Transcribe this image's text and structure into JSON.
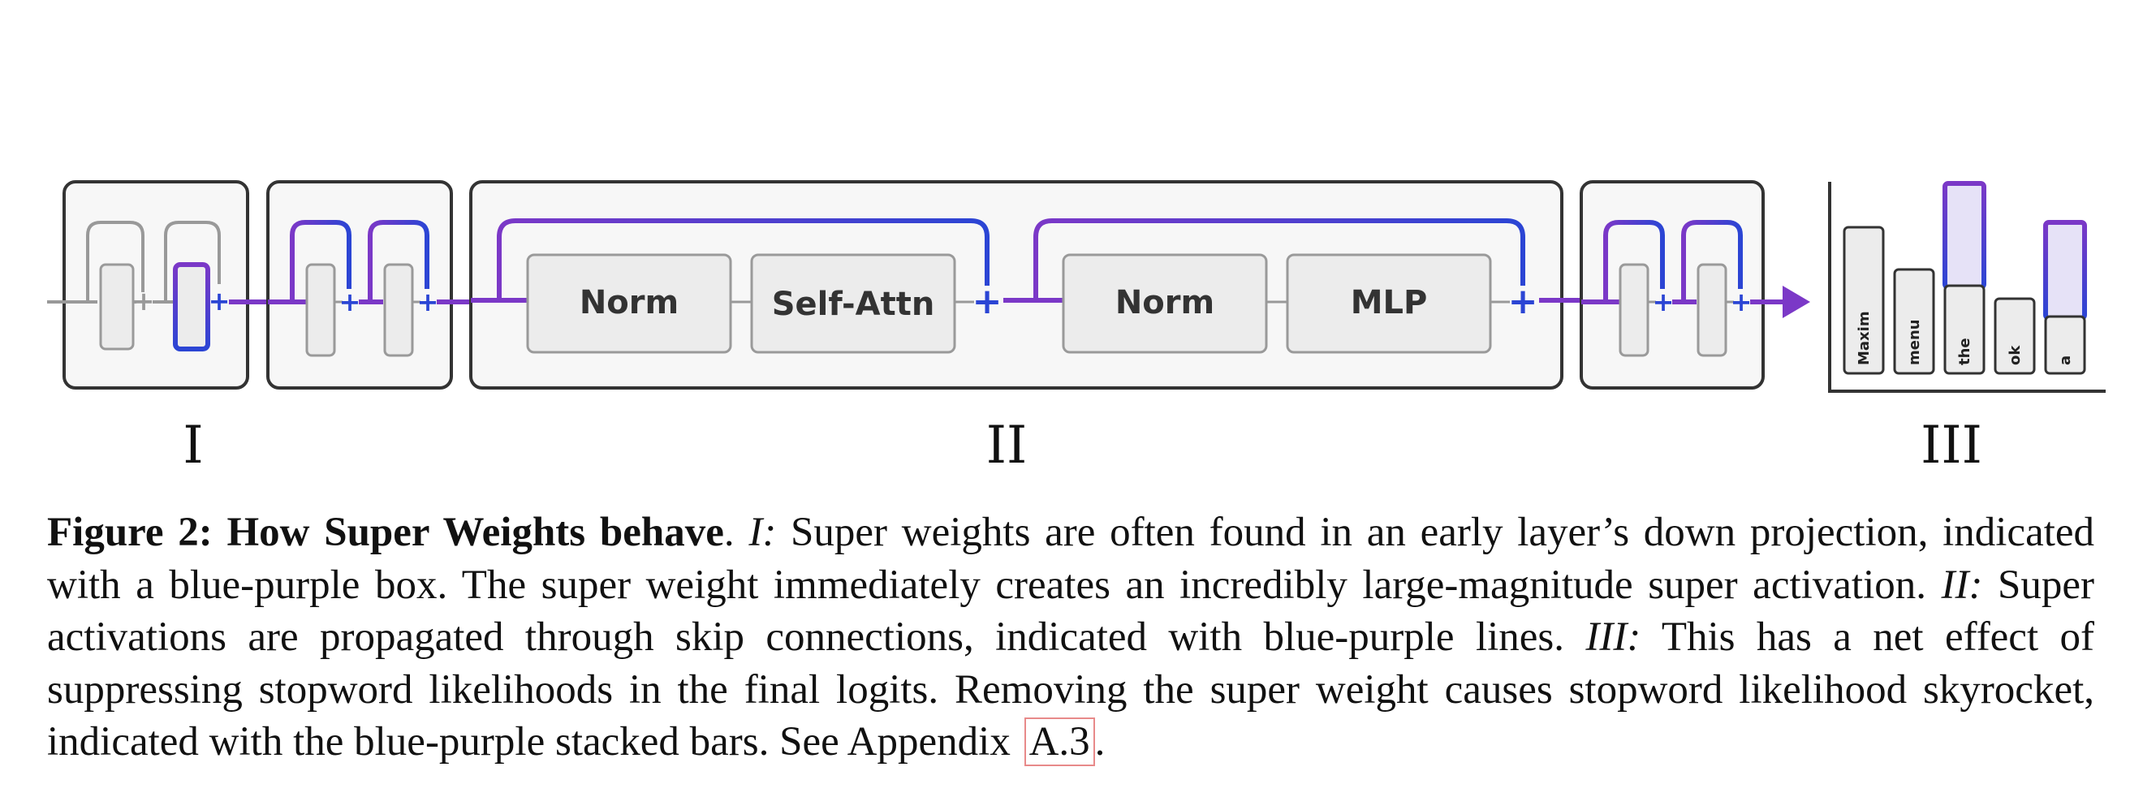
{
  "colors": {
    "accent_blue": "#2b45d4",
    "accent_purple": "#7b38c7",
    "panel_border": "#333333",
    "panel_fill": "#f7f7f7",
    "block_fill": "#ececec",
    "block_border": "#9a9a9a",
    "bar_highlight": "#e6e2f7"
  },
  "panels": {
    "norm_1": "Norm",
    "self_attn": "Self-Attn",
    "norm_2": "Norm",
    "mlp": "MLP"
  },
  "bars": [
    "Maxim",
    "menu",
    "the",
    "ok",
    "a"
  ],
  "section_labels": [
    "I",
    "II",
    "III"
  ],
  "caption": {
    "figure_label": "Figure 2:",
    "figure_title": "How Super Weights behave",
    "after_title": ". ",
    "part1_label": "I:",
    "part1_text": " Super weights are often found in an early layer’s down projection, indicated with a blue-purple box. The super weight immediately creates an incredibly large-magnitude super activation. ",
    "part2_label": "II:",
    "part2_text": " Super activations are propagated through skip connections, indicated with blue-purple lines. ",
    "part3_label": "III:",
    "part3_text": " This has a net effect of suppressing stopword likelihoods in the final logits. Removing the super weight causes stopword likelihood skyrocket, indicated with the blue-purple stacked bars. See Appendix ",
    "appendix_ref": "A.3",
    "end": "."
  }
}
